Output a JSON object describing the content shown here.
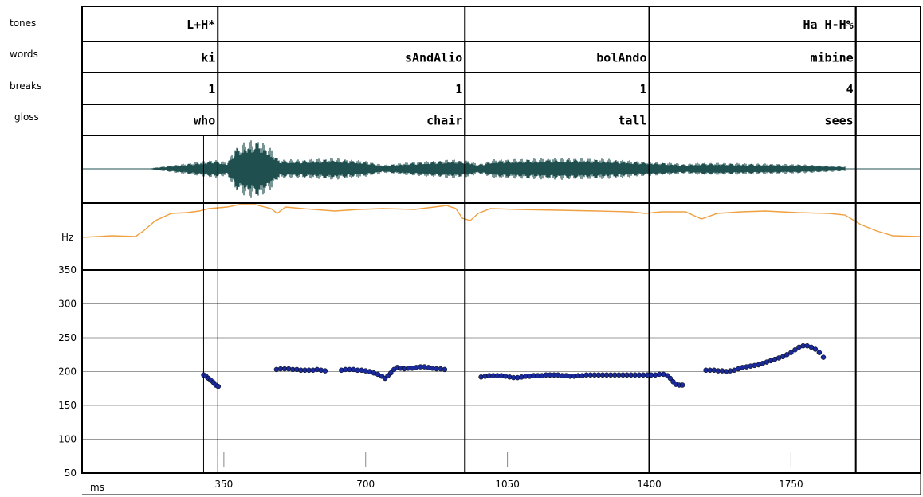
{
  "tiers": {
    "tones": {
      "label": "tones",
      "cells": [
        {
          "end_ms": 335,
          "text": "L+H*"
        },
        {
          "end_ms": 1910,
          "text": "Ha H-H%"
        }
      ]
    },
    "words": {
      "label": "words",
      "cells": [
        {
          "end_ms": 335,
          "text": "ki"
        },
        {
          "end_ms": 945,
          "text": "sAndAlio"
        },
        {
          "end_ms": 1400,
          "text": "bolAndo"
        },
        {
          "end_ms": 1910,
          "text": "mibine"
        }
      ]
    },
    "breaks": {
      "label": "breaks",
      "cells": [
        {
          "end_ms": 335,
          "text": "1"
        },
        {
          "end_ms": 945,
          "text": "1"
        },
        {
          "end_ms": 1400,
          "text": "1"
        },
        {
          "end_ms": 1910,
          "text": "4"
        }
      ]
    },
    "gloss": {
      "label": "gloss",
      "cells": [
        {
          "end_ms": 335,
          "text": "who"
        },
        {
          "end_ms": 945,
          "text": "chair"
        },
        {
          "end_ms": 1400,
          "text": "tall"
        },
        {
          "end_ms": 1910,
          "text": "sees"
        }
      ]
    }
  },
  "boundaries_ms": [
    {
      "ms": 300,
      "extent": "lower"
    },
    {
      "ms": 335,
      "extent": "lower"
    },
    {
      "ms": 945,
      "extent": "all"
    },
    {
      "ms": 1400,
      "extent": "all"
    },
    {
      "ms": 1910,
      "extent": "all"
    }
  ],
  "panels": {
    "intensity_unit": "Hz"
  },
  "chart_data": {
    "type": "scatter",
    "title": "",
    "xlabel": "ms",
    "ylabel": "",
    "xlim": [
      0,
      2070
    ],
    "ylim": [
      50,
      350
    ],
    "x_ticks": [
      350,
      700,
      1050,
      1400,
      1750
    ],
    "y_ticks": [
      50,
      100,
      150,
      200,
      250,
      300,
      350
    ],
    "grid": true,
    "colors": {
      "f0_points": "#1a2a9a",
      "waveform": "#1f4f4f",
      "intensity": "#f0a040",
      "grid": "#999999"
    },
    "series": [
      {
        "points": [
          [
            300,
            195
          ],
          [
            306,
            193
          ],
          [
            312,
            190
          ],
          [
            318,
            187
          ],
          [
            324,
            184
          ],
          [
            330,
            180
          ],
          [
            336,
            178
          ],
          [
            480,
            203
          ],
          [
            490,
            204
          ],
          [
            500,
            204
          ],
          [
            510,
            204
          ],
          [
            520,
            203
          ],
          [
            530,
            203
          ],
          [
            540,
            202
          ],
          [
            550,
            202
          ],
          [
            560,
            202
          ],
          [
            570,
            202
          ],
          [
            580,
            203
          ],
          [
            590,
            202
          ],
          [
            600,
            201
          ],
          [
            640,
            202
          ],
          [
            650,
            203
          ],
          [
            660,
            203
          ],
          [
            670,
            203
          ],
          [
            680,
            202
          ],
          [
            690,
            202
          ],
          [
            700,
            201
          ],
          [
            710,
            200
          ],
          [
            720,
            198
          ],
          [
            730,
            196
          ],
          [
            740,
            193
          ],
          [
            748,
            190
          ],
          [
            755,
            194
          ],
          [
            762,
            198
          ],
          [
            770,
            203
          ],
          [
            778,
            206
          ],
          [
            786,
            205
          ],
          [
            795,
            204
          ],
          [
            805,
            205
          ],
          [
            815,
            205
          ],
          [
            825,
            206
          ],
          [
            835,
            207
          ],
          [
            845,
            207
          ],
          [
            855,
            206
          ],
          [
            865,
            205
          ],
          [
            875,
            204
          ],
          [
            885,
            204
          ],
          [
            895,
            203
          ],
          [
            985,
            192
          ],
          [
            995,
            193
          ],
          [
            1005,
            194
          ],
          [
            1015,
            194
          ],
          [
            1025,
            194
          ],
          [
            1035,
            194
          ],
          [
            1045,
            193
          ],
          [
            1055,
            192
          ],
          [
            1065,
            191
          ],
          [
            1075,
            191
          ],
          [
            1085,
            192
          ],
          [
            1095,
            193
          ],
          [
            1105,
            193
          ],
          [
            1115,
            194
          ],
          [
            1125,
            194
          ],
          [
            1135,
            194
          ],
          [
            1145,
            195
          ],
          [
            1155,
            195
          ],
          [
            1165,
            195
          ],
          [
            1175,
            195
          ],
          [
            1185,
            194
          ],
          [
            1195,
            194
          ],
          [
            1205,
            193
          ],
          [
            1215,
            193
          ],
          [
            1225,
            194
          ],
          [
            1235,
            194
          ],
          [
            1245,
            195
          ],
          [
            1255,
            195
          ],
          [
            1265,
            195
          ],
          [
            1275,
            195
          ],
          [
            1285,
            195
          ],
          [
            1295,
            195
          ],
          [
            1305,
            195
          ],
          [
            1315,
            195
          ],
          [
            1325,
            195
          ],
          [
            1335,
            195
          ],
          [
            1345,
            195
          ],
          [
            1355,
            195
          ],
          [
            1365,
            195
          ],
          [
            1375,
            195
          ],
          [
            1385,
            195
          ],
          [
            1395,
            195
          ],
          [
            1405,
            195
          ],
          [
            1415,
            195
          ],
          [
            1425,
            196
          ],
          [
            1435,
            196
          ],
          [
            1445,
            194
          ],
          [
            1452,
            190
          ],
          [
            1459,
            185
          ],
          [
            1466,
            181
          ],
          [
            1474,
            180
          ],
          [
            1482,
            180
          ],
          [
            1540,
            202
          ],
          [
            1550,
            202
          ],
          [
            1560,
            202
          ],
          [
            1570,
            201
          ],
          [
            1580,
            201
          ],
          [
            1590,
            200
          ],
          [
            1600,
            201
          ],
          [
            1610,
            202
          ],
          [
            1620,
            204
          ],
          [
            1630,
            206
          ],
          [
            1640,
            207
          ],
          [
            1650,
            208
          ],
          [
            1660,
            209
          ],
          [
            1670,
            210
          ],
          [
            1680,
            212
          ],
          [
            1690,
            214
          ],
          [
            1700,
            216
          ],
          [
            1710,
            218
          ],
          [
            1720,
            220
          ],
          [
            1730,
            222
          ],
          [
            1740,
            225
          ],
          [
            1750,
            228
          ],
          [
            1760,
            232
          ],
          [
            1770,
            236
          ],
          [
            1780,
            238
          ],
          [
            1790,
            238
          ],
          [
            1800,
            236
          ],
          [
            1810,
            233
          ],
          [
            1820,
            228
          ],
          [
            1830,
            221
          ]
        ]
      }
    ]
  }
}
